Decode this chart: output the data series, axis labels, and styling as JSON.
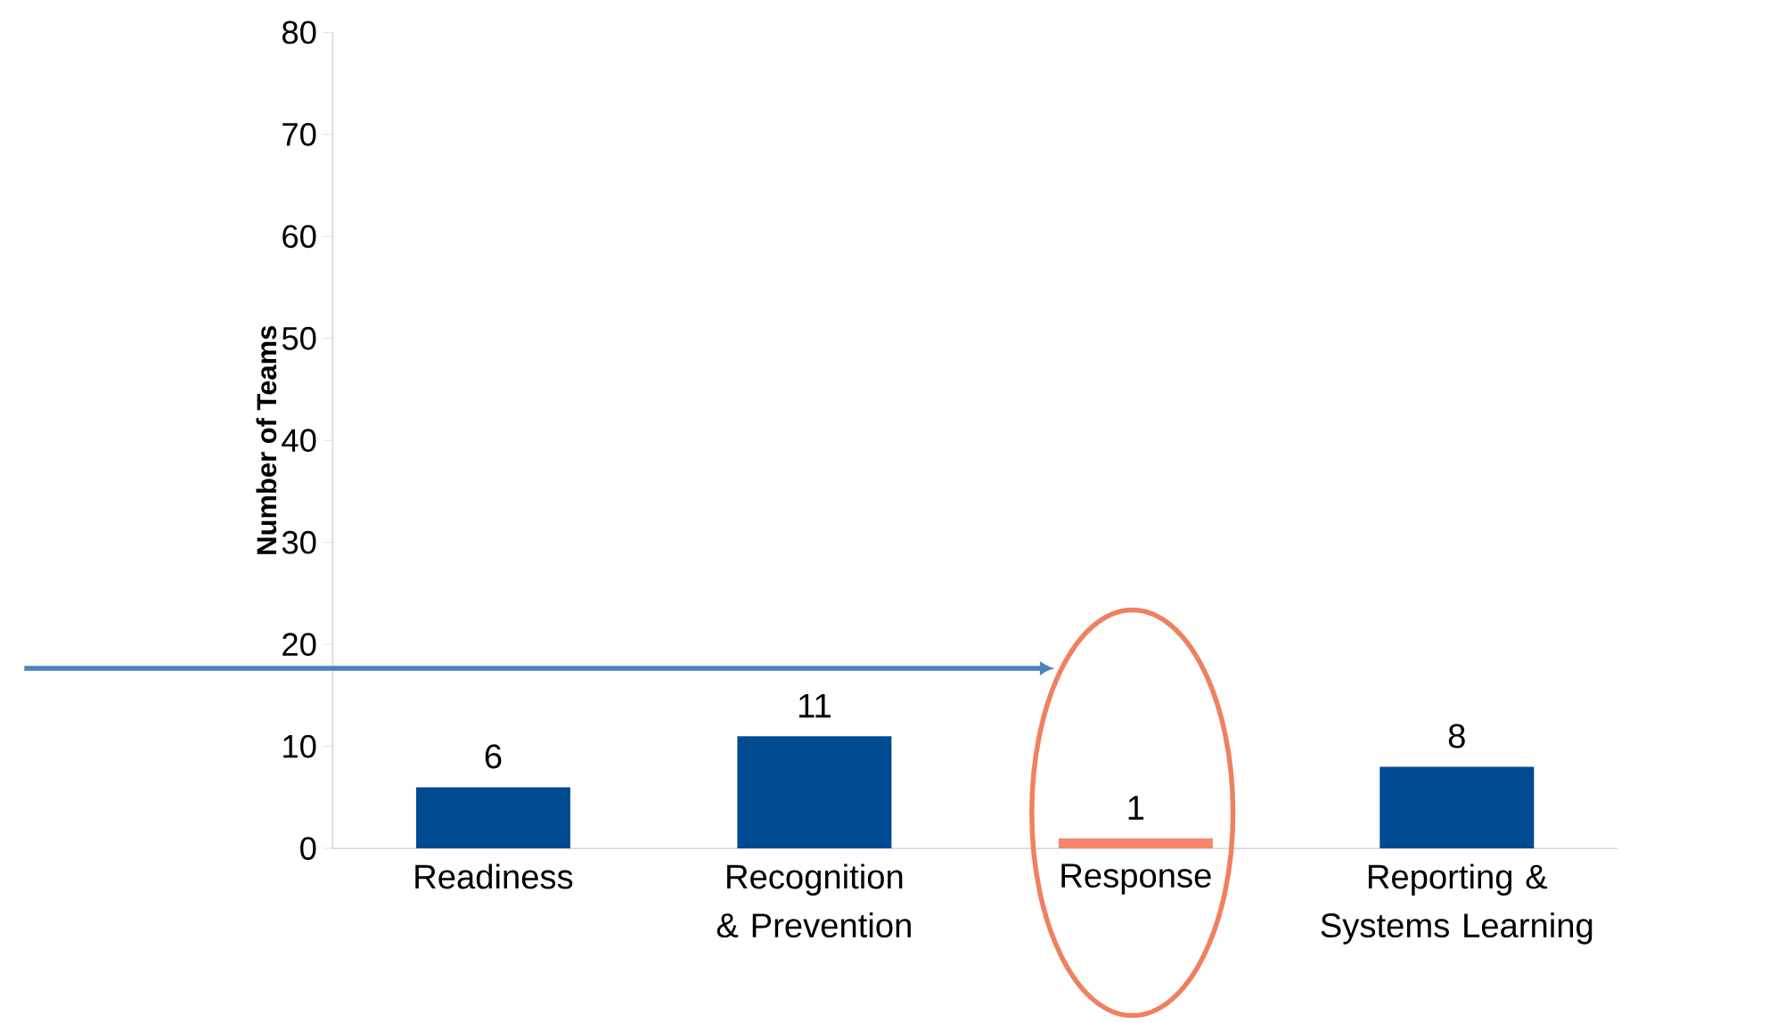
{
  "chart_data": {
    "type": "bar",
    "ylabel": "Number of Teams",
    "categories": [
      "Readiness",
      "Recognition & Prevention",
      "Response",
      "Reporting & Systems Learning"
    ],
    "values": [
      6,
      11,
      1,
      8
    ],
    "colors": [
      "#004a91",
      "#004a91",
      "#f4876a",
      "#004a91"
    ],
    "ylim": [
      0,
      80
    ],
    "yticks": [
      0,
      10,
      20,
      30,
      40,
      50,
      60,
      70,
      80
    ],
    "data_labels": true
  }
}
